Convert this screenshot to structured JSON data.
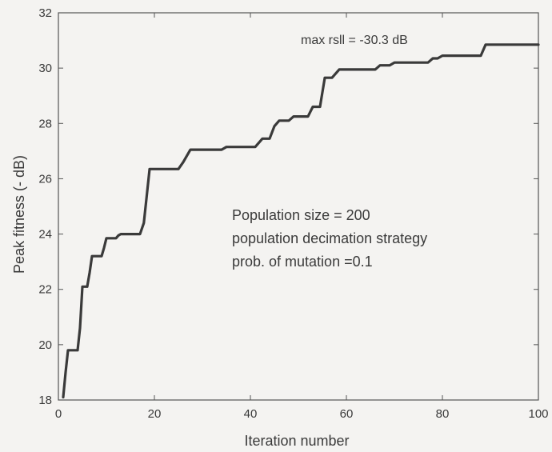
{
  "chart_data": {
    "type": "line",
    "xlabel": "Iteration number",
    "ylabel": "Peak fitness (- dB)",
    "xlim": [
      0,
      100
    ],
    "ylim": [
      18,
      32
    ],
    "x_ticks": [
      0,
      20,
      40,
      60,
      80,
      100
    ],
    "y_ticks": [
      18,
      20,
      22,
      24,
      26,
      28,
      30,
      32
    ],
    "grid": false,
    "annotations": {
      "top": "max rsll = -30.3 dB",
      "line1": "Population size = 200",
      "line2": "population decimation strategy",
      "line3": "prob. of mutation =0.1"
    },
    "series": [
      {
        "color": "#3a3a3a",
        "points": [
          [
            1,
            18.1
          ],
          [
            1.5,
            19.0
          ],
          [
            2,
            19.8
          ],
          [
            4,
            19.8
          ],
          [
            4.5,
            20.6
          ],
          [
            5,
            22.1
          ],
          [
            6,
            22.1
          ],
          [
            6.5,
            22.6
          ],
          [
            7,
            23.2
          ],
          [
            9,
            23.2
          ],
          [
            9.5,
            23.5
          ],
          [
            10,
            23.85
          ],
          [
            12,
            23.85
          ],
          [
            12.5,
            23.95
          ],
          [
            13,
            24.0
          ],
          [
            17,
            24.0
          ],
          [
            17.8,
            24.4
          ],
          [
            19,
            26.35
          ],
          [
            25,
            26.35
          ],
          [
            26,
            26.6
          ],
          [
            27.5,
            27.05
          ],
          [
            34,
            27.05
          ],
          [
            35,
            27.15
          ],
          [
            41,
            27.15
          ],
          [
            42.5,
            27.45
          ],
          [
            44,
            27.45
          ],
          [
            45,
            27.9
          ],
          [
            46,
            28.1
          ],
          [
            48,
            28.1
          ],
          [
            49,
            28.25
          ],
          [
            52,
            28.25
          ],
          [
            53,
            28.6
          ],
          [
            54.5,
            28.6
          ],
          [
            55.5,
            29.65
          ],
          [
            57,
            29.65
          ],
          [
            58.5,
            29.95
          ],
          [
            66,
            29.95
          ],
          [
            67,
            30.1
          ],
          [
            69,
            30.1
          ],
          [
            70,
            30.2
          ],
          [
            77,
            30.2
          ],
          [
            78,
            30.35
          ],
          [
            79,
            30.35
          ],
          [
            80,
            30.45
          ],
          [
            88,
            30.45
          ],
          [
            89,
            30.85
          ],
          [
            100,
            30.85
          ]
        ]
      }
    ]
  }
}
